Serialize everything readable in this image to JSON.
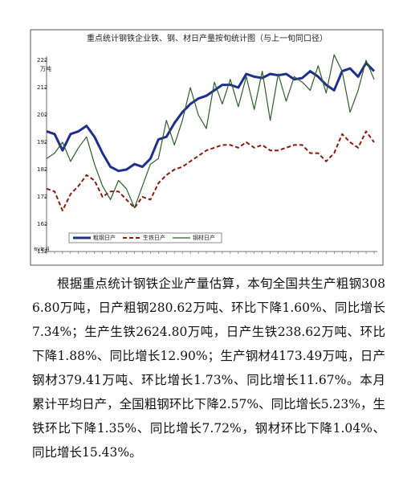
{
  "chart_data": {
    "type": "line",
    "title": "重点统计钢铁企业铁、钢、材日产量按旬统计图（与上一旬同口径）",
    "y_label": "万吨",
    "x_label": "旬/年月",
    "categories": [
      null,
      null,
      null,
      null,
      null,
      null,
      null,
      null,
      null,
      null,
      null,
      null,
      null,
      null,
      null,
      null,
      null,
      null,
      null,
      null,
      null,
      null,
      null,
      null,
      null,
      null,
      null,
      null,
      null,
      null,
      null,
      null,
      null,
      null,
      null,
      null,
      null,
      null,
      null,
      null,
      null,
      null
    ],
    "ylim": [
      152,
      222
    ],
    "yticks": [
      152,
      162,
      172,
      182,
      192,
      202,
      212,
      222
    ],
    "legend": "bottom-left",
    "series": [
      {
        "name": "粗钢日产",
        "color": "#1f2f8c",
        "width": 3,
        "dash": "none",
        "values": [
          196,
          195,
          189,
          195,
          196,
          198,
          194,
          188,
          183,
          181.5,
          182,
          184,
          183,
          186,
          193,
          194,
          199,
          203,
          206,
          208,
          209,
          211,
          213,
          213,
          212,
          217,
          216,
          215.5,
          217,
          216.5,
          217,
          215,
          215.5,
          218,
          216,
          213,
          211,
          218,
          219,
          216,
          221,
          218
        ]
      },
      {
        "name": "生铁日产",
        "color": "#8b1a0e",
        "width": 2,
        "dash": "5 3",
        "values": [
          175,
          174,
          167,
          173,
          176,
          180,
          178,
          172,
          174,
          174,
          171,
          168,
          172,
          171,
          177,
          180,
          182,
          183,
          185,
          187,
          189,
          190,
          191,
          191,
          190,
          192,
          190,
          191,
          189,
          189,
          190,
          191,
          191,
          188,
          188,
          185,
          188,
          195,
          192,
          190,
          196,
          192
        ]
      },
      {
        "name": "钢材日产",
        "color": "#2e5e2a",
        "width": 1.2,
        "dash": "none",
        "values": [
          186,
          188,
          192,
          185,
          190,
          194,
          184,
          176,
          171,
          178,
          175,
          168,
          176,
          184,
          186,
          200,
          191,
          200,
          212,
          202,
          197,
          214,
          206,
          215,
          205,
          216,
          204,
          218,
          200,
          217,
          207,
          216,
          214,
          211,
          220,
          210,
          224,
          218,
          203,
          211,
          222,
          215
        ]
      }
    ]
  },
  "document": {
    "paragraph": "根据重点统计钢铁企业产量估算，本旬全国共生产粗钢3086.80万吨，日产粗钢280.62万吨、环比下降1.60%、同比增长7.34%；生产生铁2624.80万吨，日产生铁238.62万吨、环比下降1.88%、同比增长12.90%；生产钢材4173.49万吨，日产钢材379.41万吨、环比增长1.73%、同比增长11.67%。本月累计平均日产，全国粗钢环比下降2.57%、同比增长5.23%，生铁环比下降1.35%、同比增长7.72%，钢材环比下降1.04%、同比增长15.43%。"
  }
}
